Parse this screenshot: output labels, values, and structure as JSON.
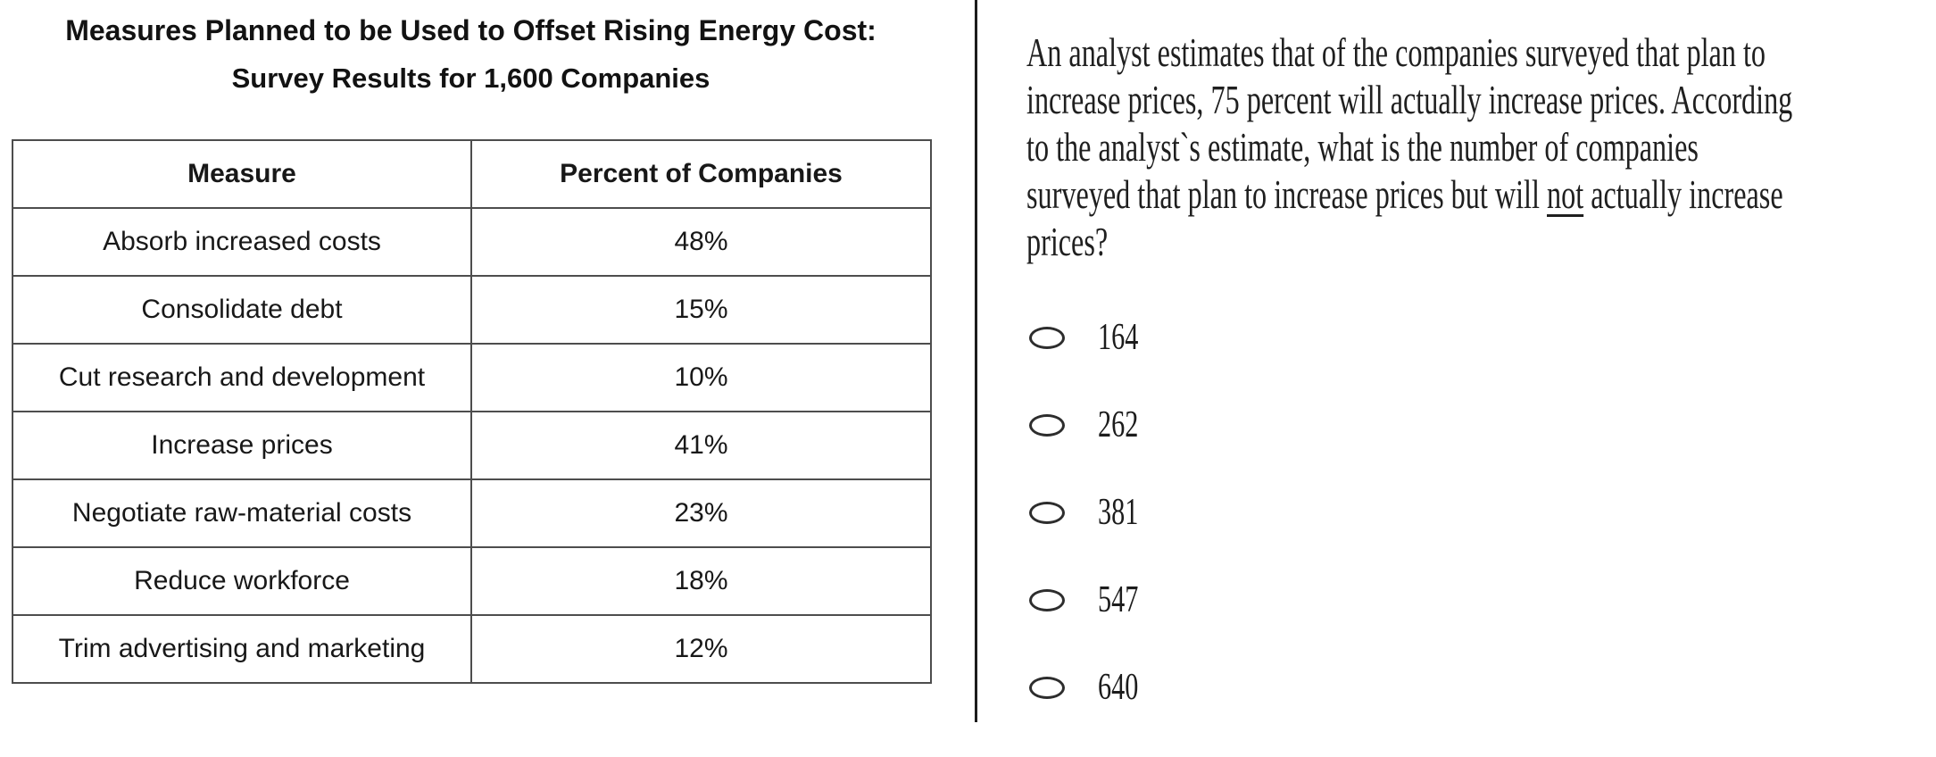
{
  "left_panel": {
    "title_line1": "Measures Planned to be Used to Offset Rising Energy Cost:",
    "title_line2": "Survey Results for 1,600 Companies",
    "table": {
      "headers": [
        "Measure",
        "Percent of Companies"
      ],
      "rows": [
        [
          "Absorb increased costs",
          "48%"
        ],
        [
          "Consolidate debt",
          "15%"
        ],
        [
          "Cut research and development",
          "10%"
        ],
        [
          "Increase prices",
          "41%"
        ],
        [
          "Negotiate raw-material costs",
          "23%"
        ],
        [
          "Reduce workforce",
          "18%"
        ],
        [
          "Trim advertising and marketing",
          "12%"
        ]
      ]
    }
  },
  "question_panel": {
    "lines": [
      {
        "text": "An analyst estimates that of the companies surveyed that plan to"
      },
      {
        "text": "increase prices, 75 percent will actually increase prices. According"
      },
      {
        "text": "to the analyst`s estimate, what is the number of companies"
      },
      {
        "pre": "surveyed that plan to increase prices but will ",
        "underlined": "not",
        "post": " actually increase"
      },
      {
        "text": "prices?"
      }
    ],
    "options": [
      {
        "label": "164",
        "selected": false
      },
      {
        "label": "262",
        "selected": false
      },
      {
        "label": "381",
        "selected": false
      },
      {
        "label": "547",
        "selected": false
      },
      {
        "label": "640",
        "selected": false
      }
    ]
  },
  "colors": {
    "background": "#ffffff",
    "table_border": "#4d4d4d",
    "divider": "#1c1c1c",
    "text": "#1a1a1a"
  }
}
